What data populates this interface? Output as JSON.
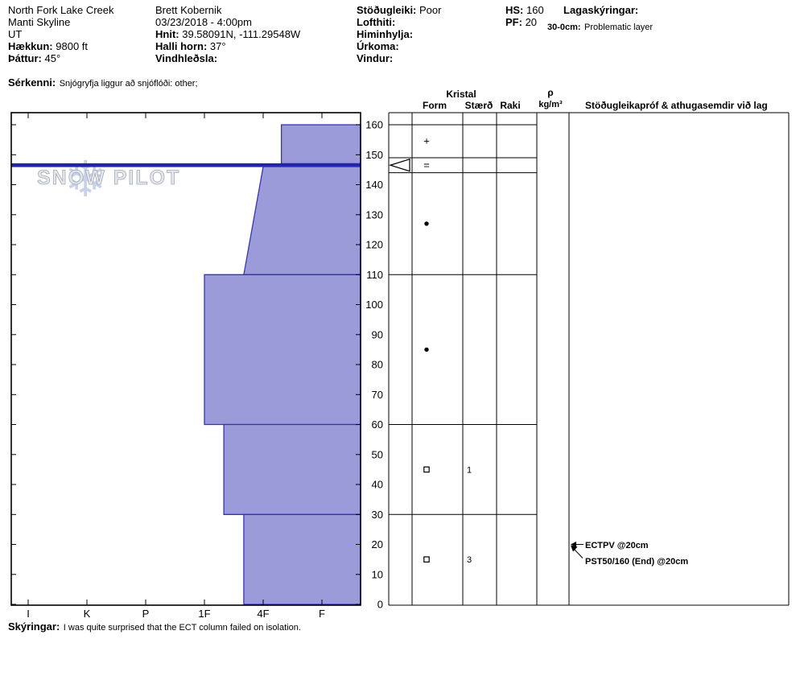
{
  "colors": {
    "layer_fill": "#9b9bd9",
    "layer_stroke": "#3434bb",
    "crust": "#2222aa",
    "grid": "#000000",
    "watermark_fill": "#e3e6ec",
    "watermark_stroke": "#a2a8b4",
    "snowflake": "#b9c8e4"
  },
  "header": {
    "location": {
      "site": "North Fork Lake Creek",
      "range": "Manti Skyline",
      "state": "UT",
      "elevation_label": "Hækkun:",
      "elevation": "9800 ft",
      "aspect_label": "Þáttur:",
      "aspect": "45°"
    },
    "observer": {
      "name": "Brett Kobernik",
      "datetime": "03/23/2018 - 4:00pm",
      "coords_label": "Hnit:",
      "coords": "39.58091N, -111.29548W",
      "slope_label": "Halli horn:",
      "slope": "37°",
      "wind_loading_label": "Vindhleðsla:",
      "wind_loading": ""
    },
    "conditions": {
      "stability_label": "Stöðugleiki:",
      "stability": "Poor",
      "air_temp_label": "Lofthiti:",
      "air_temp": "",
      "sky_label": "Himinhylja:",
      "sky": "",
      "precip_label": "Úrkoma:",
      "precip": "",
      "wind_label": "Vindur:",
      "wind": ""
    },
    "snow_depths": {
      "hs_label": "HS:",
      "hs": "160",
      "pf_label": "PF:",
      "pf": "20"
    },
    "layer_notes": {
      "title": "Lagaskýringar:",
      "note_range": "30-0cm:",
      "note_text": "Problematic layer"
    },
    "special": {
      "label": "Sérkenni:",
      "value": "Snjógryfja liggur að snjóflóði: other;"
    }
  },
  "table": {
    "kristal_header": "Kristal",
    "form_header": "Form",
    "size_header": "Stærð",
    "moisture_header": "Raki",
    "density_symbol": "ρ",
    "density_unit": "kg/m³",
    "tests_header": "Stöðugleikapróf & athugasemdir við lag"
  },
  "footer": {
    "label": "Skýringar:",
    "value": "I was quite surprised that the ECT column failed on isolation."
  },
  "chart_data": {
    "type": "area",
    "title": "Snow pit hardness profile",
    "watermark": "SNOW PILOT",
    "depth_axis": {
      "unit": "cm",
      "min": 0,
      "max": 160,
      "tick_step": 10
    },
    "depth_ticks": [
      160,
      150,
      140,
      130,
      120,
      110,
      100,
      90,
      80,
      70,
      60,
      50,
      40,
      30,
      20,
      10,
      0
    ],
    "hardness_categories": [
      "I",
      "K",
      "P",
      "1F",
      "4F",
      "F"
    ],
    "hardness_index_map": "0=I, 1=K, 2=P, 3=1F, 4=4F, 5=F (bars extend from hardness value to right edge)",
    "hs_cm": 160,
    "pf_cm": 20,
    "layers": [
      {
        "top_cm": 160,
        "bottom_cm": 147,
        "hardness_top": 4.31,
        "hardness_bottom": 4.31,
        "hand_hardness": "4F+",
        "form": "+",
        "size": "",
        "moisture": ""
      },
      {
        "top_cm": 147,
        "bottom_cm": 146,
        "crust": true,
        "hand_hardness": "I",
        "form": "=",
        "size": "",
        "moisture": ""
      },
      {
        "top_cm": 146,
        "bottom_cm": 110,
        "hardness_top": 4.0,
        "hardness_bottom": 3.67,
        "hand_hardness": "4F to 4F-",
        "form": "●",
        "size": "",
        "moisture": ""
      },
      {
        "top_cm": 110,
        "bottom_cm": 60,
        "hardness_top": 3.0,
        "hardness_bottom": 3.0,
        "hand_hardness": "1F",
        "form": "●",
        "size": "",
        "moisture": ""
      },
      {
        "top_cm": 60,
        "bottom_cm": 30,
        "hardness_top": 3.33,
        "hardness_bottom": 3.33,
        "hand_hardness": "1F+",
        "form": "□",
        "size": "1",
        "moisture": ""
      },
      {
        "top_cm": 30,
        "bottom_cm": 0,
        "hardness_top": 3.67,
        "hardness_bottom": 3.67,
        "hand_hardness": "4F-",
        "form": "□",
        "size": "3",
        "moisture": ""
      }
    ],
    "table_row_boundaries_cm": [
      160,
      149,
      144,
      110,
      60,
      30,
      0
    ],
    "tests": [
      {
        "label": "ECTPV @20cm",
        "depth_cm": 20
      },
      {
        "label": "PST50/160 (End) @20cm",
        "depth_cm": 20
      }
    ]
  }
}
